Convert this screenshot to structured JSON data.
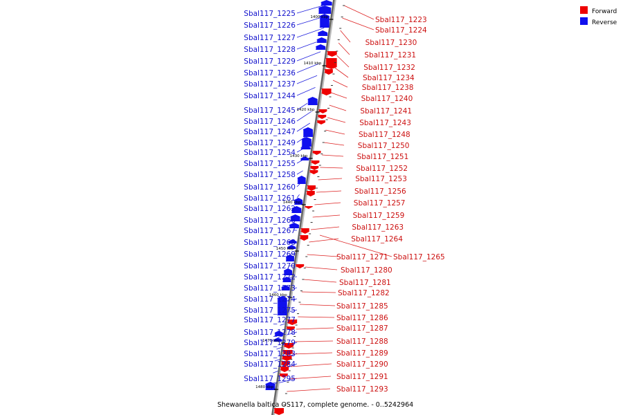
{
  "caption": "Shewanella baltica OS117, complete genome. - 0..5242964",
  "legend": [
    {
      "label": "Forward",
      "color": "#ee0000"
    },
    {
      "label": "Reverse",
      "color": "#1010ee"
    }
  ],
  "ticks": [
    "1400 kbp",
    "1410 kbp",
    "1420 kbp",
    "1430 kbp",
    "1440 kbp",
    "1450 kbp",
    "1460 kbp",
    "1470 kbp",
    "1480 kbp"
  ],
  "left_labels": [
    "Sbal117_1225",
    "Sbal117_1226",
    "Sbal117_1227",
    "Sbal117_1228",
    "Sbal117_1229",
    "Sbal117_1236",
    "Sbal117_1237",
    "Sbal117_1244",
    "Sbal117_1245",
    "Sbal117_1246",
    "Sbal117_1247",
    "Sbal117_1249",
    "Sbal117_1254",
    "Sbal117_1255",
    "Sbal117_1258",
    "Sbal117_1260",
    "Sbal117_1261",
    "Sbal117_1262",
    "Sbal117_1266",
    "Sbal117_1267",
    "Sbal117_1268",
    "Sbal117_1269",
    "Sbal117_1270",
    "Sbal117_1272",
    "Sbal117_1273",
    "Sbal117_1274",
    "Sbal117_1275",
    "Sbal117_1277",
    "Sbal117_1278",
    "Sbal117_1279",
    "Sbal117_1283",
    "Sbal117_1284",
    "Sbal117_1295"
  ],
  "right_labels": [
    "Sbal117_1223",
    "Sbal117_1224",
    "Sbal117_1230",
    "Sbal117_1231",
    "Sbal117_1232",
    "Sbal117_1234",
    "Sbal117_1238",
    "Sbal117_1240",
    "Sbal117_1241",
    "Sbal117_1243",
    "Sbal117_1248",
    "Sbal117_1250",
    "Sbal117_1251",
    "Sbal117_1252",
    "Sbal117_1253",
    "Sbal117_1256",
    "Sbal117_1257",
    "Sbal117_1259",
    "Sbal117_1263",
    "Sbal117_1264",
    "Sbal117_1271",
    "Sbal117_1280",
    "Sbal117_1281",
    "Sbal117_1282",
    "Sbal117_1285",
    "Sbal117_1286",
    "Sbal117_1287",
    "Sbal117_1288",
    "Sbal117_1289",
    "Sbal117_1290",
    "Sbal117_1291",
    "Sbal117_1293"
  ],
  "extra_right_label": "Sbal117_1265"
}
